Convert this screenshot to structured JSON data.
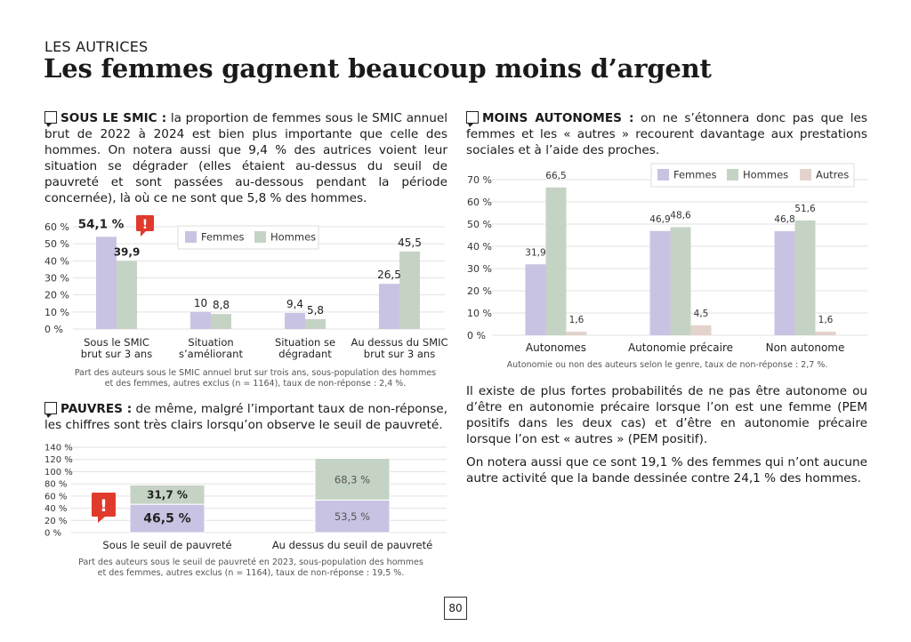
{
  "header": {
    "kicker": "LES AUTRICES",
    "title": "Les femmes gagnent beaucoup moins d’argent"
  },
  "section_smic": {
    "heading": "SOUS LE SMIC :",
    "text": " la proportion de femmes sous le SMIC annuel brut de 2022 à 2024 est bien plus importante que celle des hommes. On notera aussi que 9,4 % des autrices voient leur situation se dégrader (elles étaient au-dessus du seuil de pauvreté et sont passées au-dessous pendant la période concernée), là où ce ne sont que 5,8 % des hommes.",
    "caption_line1": "Part des auteurs sous le SMIC annuel brut sur trois ans, sous-population des hommes",
    "caption_line2": "et des femmes, autres exclus (n = 1164), taux de non-réponse : 2,4 %."
  },
  "section_pauvres": {
    "heading": "PAUVRES :",
    "text": " de même, malgré l’important taux de non-réponse, les chiffres sont très clairs lorsqu’on observe le seuil de pauvreté.",
    "caption_line1": "Part des auteurs sous le seuil de pauvreté en 2023, sous-population des hommes",
    "caption_line2": "et des femmes, autres exclus (n = 1164), taux de non-réponse : 19,5 %."
  },
  "section_autonomes": {
    "heading": "MOINS AUTONOMES :",
    "text": " on ne s’étonnera donc pas que les femmes et les « autres » recourent davantage aux prestations sociales et à l’aide des proches.",
    "caption": "Autonomie ou non des auteurs selon le genre, taux de non-réponse : 2,7 %.",
    "para1": "Il existe de plus fortes probabilités de ne pas être autonome ou d’être en autonomie précaire lorsque l’on est une femme (PEM positifs dans les deux cas) et d’être en autonomie précaire lorsque l’on est « autres » (PEM positif).",
    "para2": "On notera aussi que ce sont 19,1 % des femmes qui n’ont aucune autre activité que la bande dessinée contre 24,1 % des hommes."
  },
  "page_number": "80",
  "colors": {
    "femmes": "#c9c3e3",
    "hommes": "#c5d3c5",
    "autres": "#e3d3cc",
    "alert": "#e03a2c"
  },
  "chart_data": [
    {
      "type": "bar",
      "id": "smic",
      "categories": [
        [
          "Sous le SMIC",
          "brut sur 3 ans"
        ],
        [
          "Situation",
          "s’améliorant"
        ],
        [
          "Situation se",
          "dégradant"
        ],
        [
          "Au dessus du SMIC",
          "brut sur 3 ans"
        ]
      ],
      "series": [
        {
          "name": "Femmes",
          "values": [
            54.1,
            10,
            9.4,
            26.5
          ],
          "labels": [
            "54,1 %",
            "10",
            "9,4",
            "26,5"
          ]
        },
        {
          "name": "Hommes",
          "values": [
            39.9,
            8.8,
            5.8,
            45.5
          ],
          "labels": [
            "39,9",
            "8,8",
            "5,8",
            "45,5"
          ]
        }
      ],
      "yticks": [
        "0 %",
        "10 %",
        "20 %",
        "30 %",
        "40 %",
        "50 %",
        "60 %"
      ],
      "ylim": [
        0,
        60
      ],
      "legend": "top-center",
      "alert_icon": "exclamation-icon"
    },
    {
      "type": "bar",
      "stacked": true,
      "id": "pauvrete",
      "categories": [
        "Sous le seuil de pauvreté",
        "Au dessus du seuil de pauvreté"
      ],
      "series": [
        {
          "name": "Femmes",
          "values": [
            46.5,
            53.5
          ],
          "labels": [
            "46,5 %",
            "53,5 %"
          ]
        },
        {
          "name": "Hommes",
          "values": [
            31.7,
            68.3
          ],
          "labels": [
            "31,7 %",
            "68,3 %"
          ]
        }
      ],
      "yticks": [
        "0 %",
        "20 %",
        "40 %",
        "60 %",
        "80 %",
        "100 %",
        "120 %",
        "140 %"
      ],
      "ylim": [
        0,
        140
      ],
      "alert_icon": "exclamation-icon"
    },
    {
      "type": "bar",
      "id": "autonomie",
      "categories": [
        "Autonomes",
        "Autonomie précaire",
        "Non autonome"
      ],
      "series": [
        {
          "name": "Femmes",
          "values": [
            31.9,
            46.9,
            46.8
          ],
          "labels": [
            "31,9",
            "46,9",
            "46,8"
          ]
        },
        {
          "name": "Hommes",
          "values": [
            66.5,
            48.6,
            51.6
          ],
          "labels": [
            "66,5",
            "48,6",
            "51,6"
          ]
        },
        {
          "name": "Autres",
          "values": [
            1.6,
            4.5,
            1.6
          ],
          "labels": [
            "1,6",
            "4,5",
            "1,6"
          ]
        }
      ],
      "yticks": [
        "0 %",
        "10 %",
        "20 %",
        "30 %",
        "40 %",
        "50 %",
        "60 %",
        "70 %"
      ],
      "ylim": [
        0,
        70
      ],
      "legend": "top-right"
    }
  ]
}
